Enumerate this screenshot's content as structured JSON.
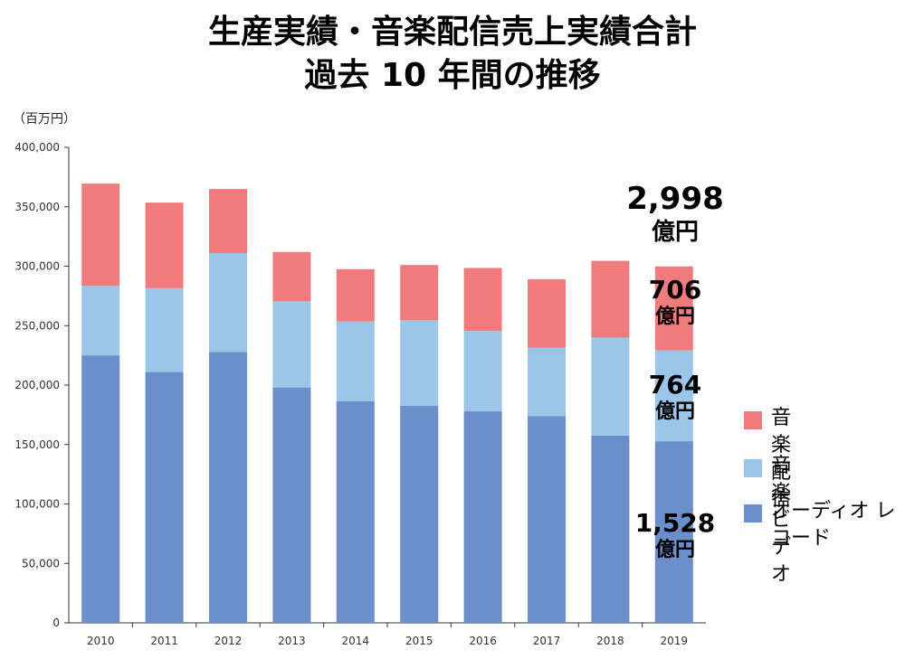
{
  "title_line1": "生産実績・音楽配信売上実績合計",
  "title_line2": "過去 10 年間の推移",
  "unit_label": "（百万円）",
  "annotations": {
    "total": {
      "value": "2,998",
      "unit": "億円"
    },
    "stream": {
      "value": "706",
      "unit": "億円"
    },
    "video": {
      "value": "764",
      "unit": "億円"
    },
    "audio": {
      "value": "1,528",
      "unit": "億円"
    }
  },
  "colors": {
    "stream": "#ef7b7d",
    "video": "#9cc5ea",
    "audio": "#6b8fca"
  },
  "chart_data": {
    "type": "bar",
    "stacked": true,
    "categories": [
      "2010",
      "2011",
      "2012",
      "2013",
      "2014",
      "2015",
      "2016",
      "2017",
      "2018",
      "2019"
    ],
    "series": [
      {
        "name": "オーディオレコード",
        "values": [
          225000,
          211000,
          228000,
          198000,
          186500,
          182500,
          178000,
          174000,
          157500,
          152800
        ]
      },
      {
        "name": "音楽ビデオ",
        "values": [
          58500,
          70500,
          83000,
          72500,
          67000,
          72000,
          67500,
          57500,
          82500,
          76400
        ]
      },
      {
        "name": "音楽配信",
        "values": [
          86000,
          72000,
          54000,
          41500,
          44000,
          46500,
          53000,
          57500,
          64500,
          70600
        ]
      }
    ],
    "ylim": [
      0,
      400000
    ],
    "yticks": [
      "0",
      "50,000",
      "100,000",
      "150,000",
      "200,000",
      "250,000",
      "300,000",
      "350,000",
      "400,000"
    ],
    "legend": [
      "音楽配信",
      "音楽ビデオ",
      "オーディオ レコード"
    ],
    "legend_position": "right",
    "grid": false
  }
}
